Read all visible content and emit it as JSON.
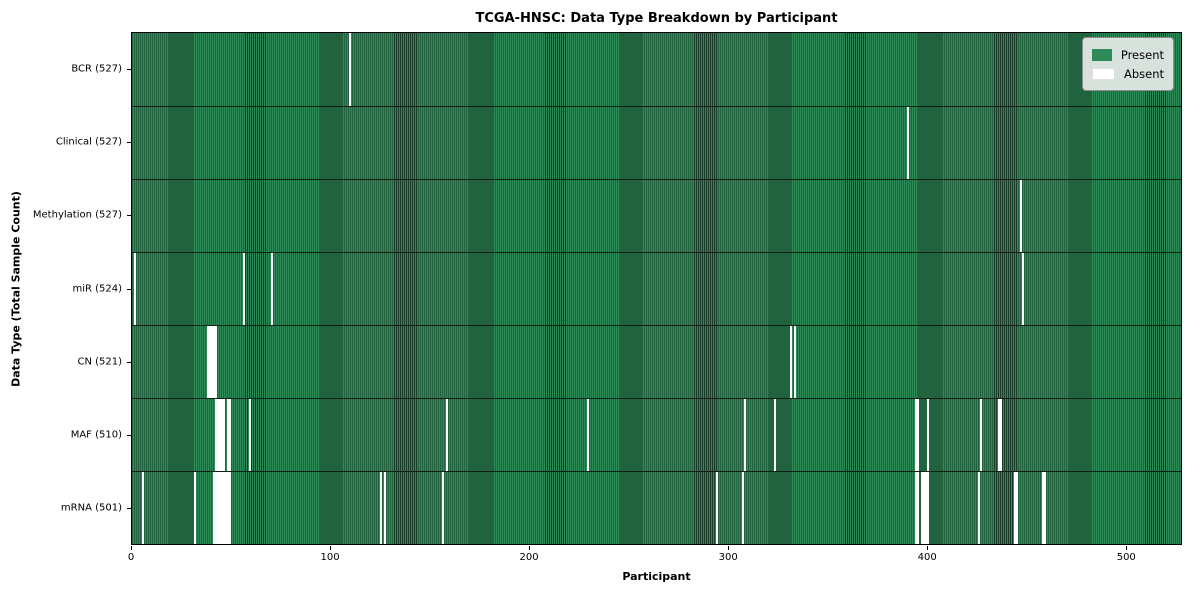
{
  "title": "TCGA-HNSC: Data Type Breakdown by Participant",
  "chart_data": {
    "type": "heatmap",
    "title": "TCGA-HNSC: Data Type Breakdown by Participant",
    "xlabel": "Participant",
    "ylabel": "Data Type (Total Sample Count)",
    "x_ticks": [
      0,
      100,
      200,
      300,
      400,
      500
    ],
    "n_participants": 528,
    "grid": false,
    "legend_position": "upper right",
    "colors": {
      "present": "#2e8b57",
      "absent": "#ffffff",
      "edge": "#173b27"
    },
    "legend": [
      {
        "label": "Present",
        "color": "#2e8b57"
      },
      {
        "label": "Absent",
        "color": "#ffffff"
      }
    ],
    "rows": [
      {
        "label": "BCR (527)",
        "data_type": "BCR",
        "present_count": 527,
        "absent": [
          109
        ]
      },
      {
        "label": "Clinical (527)",
        "data_type": "Clinical",
        "present_count": 527,
        "absent": [
          390
        ]
      },
      {
        "label": "Methylation (527)",
        "data_type": "Methylation",
        "present_count": 527,
        "absent": [
          447
        ]
      },
      {
        "label": "miR (524)",
        "data_type": "miR",
        "present_count": 524,
        "absent": [
          1,
          56,
          70,
          448
        ]
      },
      {
        "label": "CN (521)",
        "data_type": "CN",
        "present_count": 521,
        "absent": [
          38,
          39,
          40,
          41,
          42,
          331,
          333
        ]
      },
      {
        "label": "MAF (510)",
        "data_type": "MAF",
        "present_count": 510,
        "absent": [
          42,
          43,
          44,
          45,
          46,
          48,
          49,
          59,
          158,
          229,
          308,
          323,
          394,
          395,
          400,
          427,
          436,
          437
        ]
      },
      {
        "label": "mRNA (501)",
        "data_type": "mRNA",
        "present_count": 501,
        "absent": [
          5,
          31,
          41,
          42,
          43,
          44,
          45,
          46,
          47,
          48,
          49,
          125,
          127,
          156,
          294,
          307,
          394,
          395,
          397,
          398,
          399,
          400,
          426,
          444,
          445,
          458,
          459
        ]
      }
    ]
  }
}
